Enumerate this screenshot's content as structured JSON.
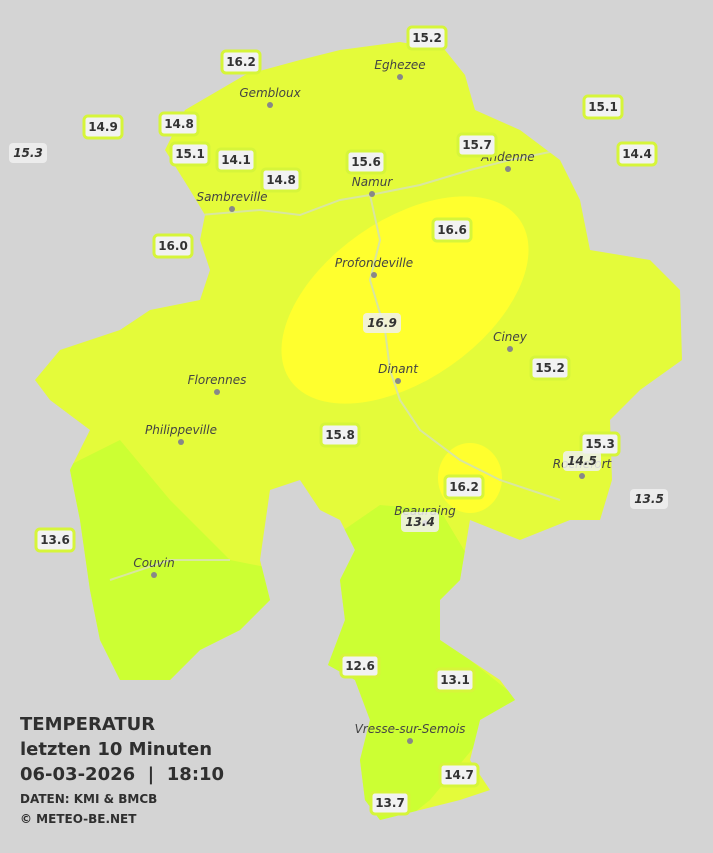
{
  "legend": {
    "title": "TEMPERATUR",
    "period": "letzten 10 Minuten",
    "timestamp": "06-03-2026  |  18:10",
    "source": "DATEN: KMI & BMCB",
    "copyright": "© METEO-BE.NET"
  },
  "towns": [
    "Eghezee",
    "Gembloux",
    "Andenne",
    "Namur",
    "Sambreville",
    "Profondeville",
    "Ciney",
    "Dinant",
    "Florennes",
    "Philippeville",
    "Rochefort",
    "Beauraing",
    "Couvin",
    "Vresse-sur-Semois"
  ],
  "stations": [
    "15.2",
    "16.2",
    "15.1",
    "14.9",
    "14.8",
    "15.7",
    "14.4",
    "15.3",
    "15.1",
    "14.1",
    "15.6",
    "14.8",
    "16.6",
    "16.0",
    "16.9",
    "15.2",
    "15.8",
    "15.3",
    "14.5",
    "16.2",
    "13.5",
    "13.4",
    "13.6",
    "12.6",
    "13.1",
    "14.7",
    "13.7"
  ]
}
